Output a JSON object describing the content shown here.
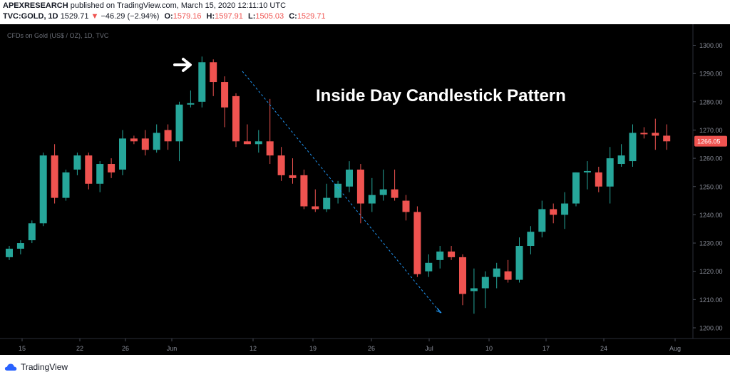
{
  "header": {
    "publisher": "APEXRESEARCH",
    "published_text": "published on TradingView.com, March 15, 2020 12:11:10 UTC",
    "symbol": "TVC:GOLD, 1D",
    "last": "1529.71",
    "change": "−46.29 (−2.94%)",
    "o_label": "O:",
    "o_value": "1579.16",
    "h_label": "H:",
    "h_value": "1597.91",
    "l_label": "L:",
    "l_value": "1505.03",
    "c_label": "C:",
    "c_value": "1529.71"
  },
  "chart_watermark": "CFDs on Gold (US$ / OZ), 1D, TVC",
  "annotation_text": "Inside Day Candlestick Pattern",
  "price_tag": "1266.05",
  "footer": {
    "brand": "TradingView"
  },
  "colors": {
    "up": "#26a69a",
    "down": "#ef5350",
    "background": "#000000",
    "trendline": "#2196f3",
    "price_tag": "#ef5350"
  },
  "chart_data": {
    "type": "candlestick",
    "ylim": [
      1195,
      1305
    ],
    "y_ticks": [
      1300,
      1290,
      1280,
      1270,
      1260,
      1250,
      1240,
      1230,
      1220,
      1210,
      1200
    ],
    "x_tick_labels": [
      "15",
      "22",
      "26",
      "Jun",
      "12",
      "19",
      "26",
      "Jul",
      "10",
      "17",
      "24",
      "Aug"
    ],
    "candles": [
      {
        "o": 1225.0,
        "h": 1229.0,
        "l": 1224.0,
        "c": 1228.0
      },
      {
        "o": 1228.0,
        "h": 1231.0,
        "l": 1226.0,
        "c": 1230.0
      },
      {
        "o": 1231.0,
        "h": 1238.0,
        "l": 1230.0,
        "c": 1237.0
      },
      {
        "o": 1237.0,
        "h": 1262.0,
        "l": 1236.0,
        "c": 1261.0
      },
      {
        "o": 1261.0,
        "h": 1265.0,
        "l": 1244.0,
        "c": 1246.0
      },
      {
        "o": 1246.0,
        "h": 1256.0,
        "l": 1245.0,
        "c": 1255.0
      },
      {
        "o": 1256.0,
        "h": 1262.0,
        "l": 1254.0,
        "c": 1261.0
      },
      {
        "o": 1261.0,
        "h": 1262.0,
        "l": 1249.0,
        "c": 1251.0
      },
      {
        "o": 1251.0,
        "h": 1259.0,
        "l": 1248.0,
        "c": 1258.0
      },
      {
        "o": 1258.0,
        "h": 1260.0,
        "l": 1253.0,
        "c": 1255.0
      },
      {
        "o": 1256.0,
        "h": 1270.0,
        "l": 1254.0,
        "c": 1267.0
      },
      {
        "o": 1267.0,
        "h": 1268.0,
        "l": 1265.0,
        "c": 1266.0
      },
      {
        "o": 1267.0,
        "h": 1270.0,
        "l": 1261.0,
        "c": 1263.0
      },
      {
        "o": 1263.0,
        "h": 1272.0,
        "l": 1262.0,
        "c": 1269.0
      },
      {
        "o": 1270.0,
        "h": 1272.0,
        "l": 1263.0,
        "c": 1266.0
      },
      {
        "o": 1266.0,
        "h": 1280.0,
        "l": 1259.0,
        "c": 1279.0
      },
      {
        "o": 1279.0,
        "h": 1284.0,
        "l": 1278.0,
        "c": 1279.5
      },
      {
        "o": 1280.0,
        "h": 1296.0,
        "l": 1278.0,
        "c": 1294.0
      },
      {
        "o": 1294.0,
        "h": 1295.0,
        "l": 1282.0,
        "c": 1287.0
      },
      {
        "o": 1287.0,
        "h": 1289.0,
        "l": 1271.0,
        "c": 1278.0
      },
      {
        "o": 1282.0,
        "h": 1283.0,
        "l": 1264.0,
        "c": 1266.0
      },
      {
        "o": 1266.0,
        "h": 1272.0,
        "l": 1265.0,
        "c": 1265.0
      },
      {
        "o": 1265.0,
        "h": 1270.0,
        "l": 1262.0,
        "c": 1266.0
      },
      {
        "o": 1266.0,
        "h": 1281.0,
        "l": 1258.0,
        "c": 1261.0
      },
      {
        "o": 1261.0,
        "h": 1264.0,
        "l": 1252.0,
        "c": 1254.0
      },
      {
        "o": 1254.0,
        "h": 1260.0,
        "l": 1251.0,
        "c": 1253.0
      },
      {
        "o": 1254.0,
        "h": 1256.0,
        "l": 1242.0,
        "c": 1243.0
      },
      {
        "o": 1243.0,
        "h": 1249.0,
        "l": 1241.0,
        "c": 1242.0
      },
      {
        "o": 1242.0,
        "h": 1251.0,
        "l": 1241.0,
        "c": 1246.0
      },
      {
        "o": 1246.0,
        "h": 1252.0,
        "l": 1244.0,
        "c": 1251.0
      },
      {
        "o": 1250.0,
        "h": 1259.0,
        "l": 1248.0,
        "c": 1256.0
      },
      {
        "o": 1256.0,
        "h": 1258.0,
        "l": 1237.0,
        "c": 1244.0
      },
      {
        "o": 1244.0,
        "h": 1253.0,
        "l": 1241.0,
        "c": 1247.0
      },
      {
        "o": 1247.0,
        "h": 1256.0,
        "l": 1245.0,
        "c": 1249.0
      },
      {
        "o": 1249.0,
        "h": 1256.0,
        "l": 1245.0,
        "c": 1246.0
      },
      {
        "o": 1245.0,
        "h": 1247.0,
        "l": 1238.0,
        "c": 1241.0
      },
      {
        "o": 1241.0,
        "h": 1243.0,
        "l": 1218.0,
        "c": 1219.0
      },
      {
        "o": 1220.0,
        "h": 1226.0,
        "l": 1218.0,
        "c": 1223.0
      },
      {
        "o": 1224.0,
        "h": 1229.0,
        "l": 1221.0,
        "c": 1227.0
      },
      {
        "o": 1227.0,
        "h": 1229.0,
        "l": 1224.0,
        "c": 1225.0
      },
      {
        "o": 1225.0,
        "h": 1226.0,
        "l": 1208.0,
        "c": 1212.0
      },
      {
        "o": 1213.0,
        "h": 1221.0,
        "l": 1205.0,
        "c": 1214.0
      },
      {
        "o": 1214.0,
        "h": 1220.0,
        "l": 1207.0,
        "c": 1218.0
      },
      {
        "o": 1218.0,
        "h": 1223.0,
        "l": 1214.0,
        "c": 1221.0
      },
      {
        "o": 1220.0,
        "h": 1224.0,
        "l": 1216.0,
        "c": 1217.0
      },
      {
        "o": 1217.0,
        "h": 1232.0,
        "l": 1216.0,
        "c": 1229.0
      },
      {
        "o": 1229.0,
        "h": 1236.0,
        "l": 1226.0,
        "c": 1234.0
      },
      {
        "o": 1234.0,
        "h": 1245.0,
        "l": 1232.0,
        "c": 1242.0
      },
      {
        "o": 1242.0,
        "h": 1244.0,
        "l": 1237.0,
        "c": 1240.0
      },
      {
        "o": 1240.0,
        "h": 1248.0,
        "l": 1235.0,
        "c": 1244.0
      },
      {
        "o": 1244.0,
        "h": 1255.0,
        "l": 1243.0,
        "c": 1255.0
      },
      {
        "o": 1255.0,
        "h": 1259.0,
        "l": 1249.0,
        "c": 1255.5
      },
      {
        "o": 1255.0,
        "h": 1257.0,
        "l": 1248.0,
        "c": 1250.0
      },
      {
        "o": 1250.0,
        "h": 1264.0,
        "l": 1244.0,
        "c": 1260.0
      },
      {
        "o": 1258.0,
        "h": 1265.0,
        "l": 1257.0,
        "c": 1261.0
      },
      {
        "o": 1259.0,
        "h": 1272.0,
        "l": 1257.0,
        "c": 1269.0
      },
      {
        "o": 1269.0,
        "h": 1271.0,
        "l": 1267.0,
        "c": 1268.5
      },
      {
        "o": 1269.0,
        "h": 1274.0,
        "l": 1263.0,
        "c": 1268.0
      },
      {
        "o": 1268.0,
        "h": 1272.0,
        "l": 1263.0,
        "c": 1266.0
      }
    ]
  }
}
